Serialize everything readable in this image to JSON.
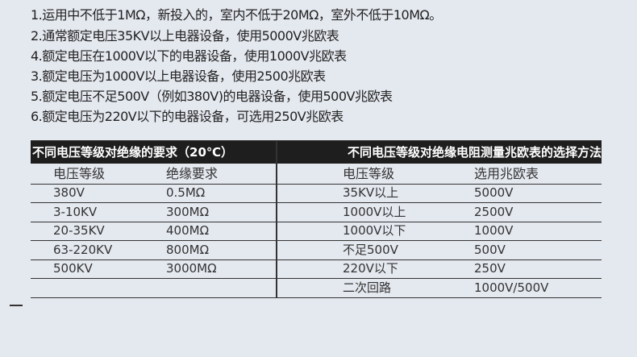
{
  "notes": [
    "1.运用中不低于1MΩ，新投入的，室内不低于20MΩ，室外不低于10MΩ。",
    "2.通常额定电压35KV以上电器设备，使用5000V兆欧表",
    "4.额定电压在1000V以下的电器设备，使用1000V兆欧表",
    "3.额定电压为1000V以上电器设备，使用2500兆欧表",
    "5.额定电压不足500V（例如380V)的电器设备，使用500V兆欧表",
    "6.额定电压为220V以下的电器设备，可选用250V兆欧表"
  ],
  "left_table": {
    "title": "不同电压等级对绝缘的要求（20℃）",
    "headers": [
      "电压等级",
      "绝缘要求"
    ],
    "rows": [
      [
        "380V",
        "0.5MΩ"
      ],
      [
        "3-10KV",
        "300MΩ"
      ],
      [
        "20-35KV",
        "400MΩ"
      ],
      [
        "63-220KV",
        "800MΩ"
      ],
      [
        "500KV",
        "3000MΩ"
      ],
      [
        "",
        ""
      ]
    ]
  },
  "right_table": {
    "title": "不同电压等级对绝缘电阻测量兆欧表的选择方法",
    "headers": [
      "电压等级",
      "选用兆欧表"
    ],
    "rows": [
      [
        "35KV以上",
        "5000V"
      ],
      [
        "1000V以上",
        "2500V"
      ],
      [
        "1000V以下",
        "1000V"
      ],
      [
        "不足500V",
        "500V"
      ],
      [
        "220V以下",
        "250V"
      ],
      [
        "二次回路",
        "1000V/500V"
      ]
    ]
  }
}
